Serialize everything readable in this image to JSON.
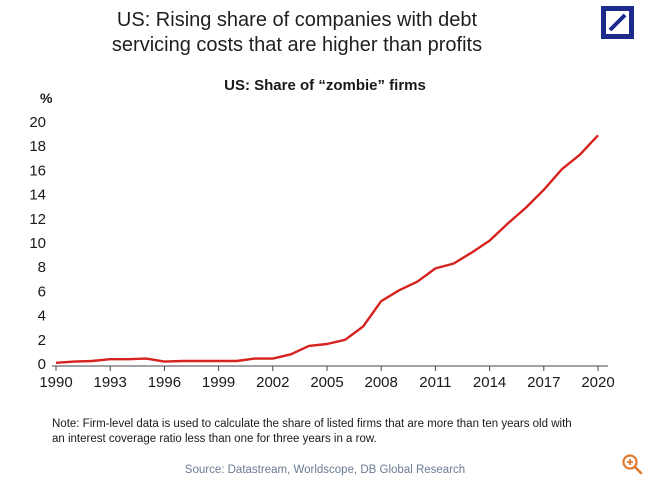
{
  "header": {
    "headline_line1": "US: Rising share of companies with debt",
    "headline_line2": "servicing costs that are higher than profits",
    "logo_icon": "deutsche-bank-logo",
    "logo_color": "#1c2a8c"
  },
  "footer": {
    "note_line1": "Note: Firm-level data is used to calculate the share of listed firms that are more than ten years old with",
    "note_line2": "an interest coverage ratio less than one for three years in a row.",
    "source": "Source: Datastream, Worldscope, DB Global Research",
    "zoom_icon": "zoom-in-icon",
    "zoom_color": "#e07a2e"
  },
  "chart_data": {
    "type": "line",
    "title": "US: Share of “zombie” firms",
    "ylabel": "%",
    "xlabel": "",
    "xlim": [
      1990,
      2020
    ],
    "ylim": [
      0,
      20
    ],
    "x_ticks": [
      1990,
      1993,
      1996,
      1999,
      2002,
      2005,
      2008,
      2011,
      2014,
      2017,
      2020
    ],
    "y_ticks": [
      0,
      2,
      4,
      6,
      8,
      10,
      12,
      14,
      16,
      18,
      20
    ],
    "grid": false,
    "legend": "none",
    "series": [
      {
        "color": "#d6231f",
        "x": [
          1990,
          1991,
          1992,
          1993,
          1994,
          1995,
          1996,
          1997,
          1998,
          1999,
          2000,
          2001,
          2002,
          2003,
          2004,
          2005,
          2006,
          2007,
          2008,
          2009,
          2010,
          2011,
          2012,
          2013,
          2014,
          2015,
          2016,
          2017,
          2018,
          2019,
          2020
        ],
        "values": [
          0.1,
          0.2,
          0.25,
          0.4,
          0.4,
          0.45,
          0.2,
          0.25,
          0.25,
          0.25,
          0.25,
          0.45,
          0.45,
          0.8,
          1.5,
          1.65,
          2.0,
          3.1,
          5.2,
          6.1,
          6.8,
          7.9,
          8.3,
          9.2,
          10.2,
          11.6,
          12.9,
          14.4,
          16.1,
          17.3,
          18.9
        ]
      }
    ]
  }
}
